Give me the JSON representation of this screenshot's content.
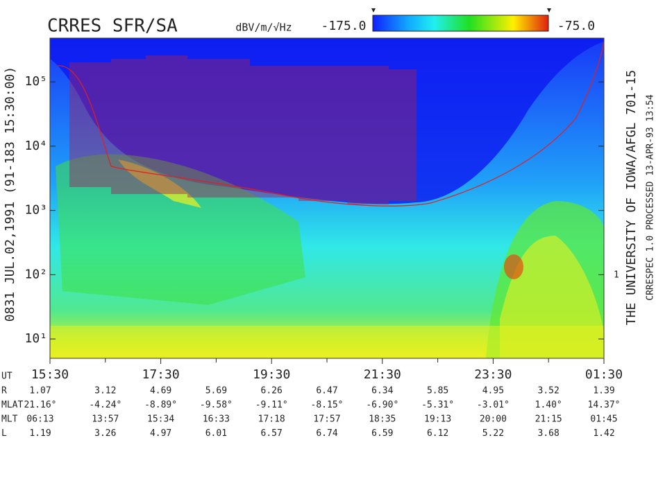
{
  "chart_data": {
    "type": "spectrogram",
    "title": "CRRES SFR/SA",
    "colorbar_label": "dBV/m/√Hz",
    "colorbar_ticks": [
      {
        "value": -175,
        "label": "-175.0"
      },
      {
        "value": -75,
        "label": "-75.0"
      }
    ],
    "y_label": "0831   JUL.02,1991   (91-183 15:30:00)",
    "right_label": "THE UNIVERSITY OF IOWA/AFGL 701-15",
    "right_label_small": "CRRESPEC 1.0   PROCESSED 13-APR-93  13:54",
    "right_axis_text": "1",
    "log_scale": true,
    "ylim": [
      5,
      480000
    ],
    "yticks": [
      {
        "value": 10,
        "label": "10¹"
      },
      {
        "value": 100,
        "label": "10²"
      },
      {
        "value": 1000,
        "label": "10³"
      },
      {
        "value": 10000,
        "label": "10⁴"
      },
      {
        "value": 100000,
        "label": "10⁵"
      }
    ],
    "xlim": [
      15.5,
      25.5
    ],
    "xticks": [
      {
        "value": 15.5,
        "label": "15:30"
      },
      {
        "value": 17.5,
        "label": "17:30"
      },
      {
        "value": 19.5,
        "label": "19:30"
      },
      {
        "value": 21.5,
        "label": "21:30"
      },
      {
        "value": 23.5,
        "label": "23:30"
      },
      {
        "value": 25.5,
        "label": "01:30"
      }
    ],
    "xminor": [
      16.5,
      18.5,
      20.5,
      22.5,
      24.5
    ],
    "ephemeris": {
      "time_label": "UT",
      "rows": [
        {
          "name": "R",
          "values": [
            "1.07",
            "3.12",
            "4.69",
            "5.69",
            "6.26",
            "6.47",
            "6.34",
            "5.85",
            "4.95",
            "3.52",
            "1.39"
          ]
        },
        {
          "name": "MLAT",
          "values": [
            "21.16°",
            "-4.24°",
            "-8.89°",
            "-9.58°",
            "-9.11°",
            "-8.15°",
            "-6.90°",
            "-5.31°",
            "-3.01°",
            "1.40°",
            "14.37°"
          ]
        },
        {
          "name": "MLT",
          "values": [
            "06:13",
            "13:57",
            "15:34",
            "16:33",
            "17:18",
            "17:57",
            "18:35",
            "19:13",
            "20:00",
            "21:15",
            "01:45"
          ]
        },
        {
          "name": "L",
          "values": [
            "1.19",
            "3.26",
            "4.97",
            "6.01",
            "6.57",
            "6.74",
            "6.59",
            "6.12",
            "5.22",
            "3.68",
            "1.42"
          ]
        }
      ]
    }
  }
}
